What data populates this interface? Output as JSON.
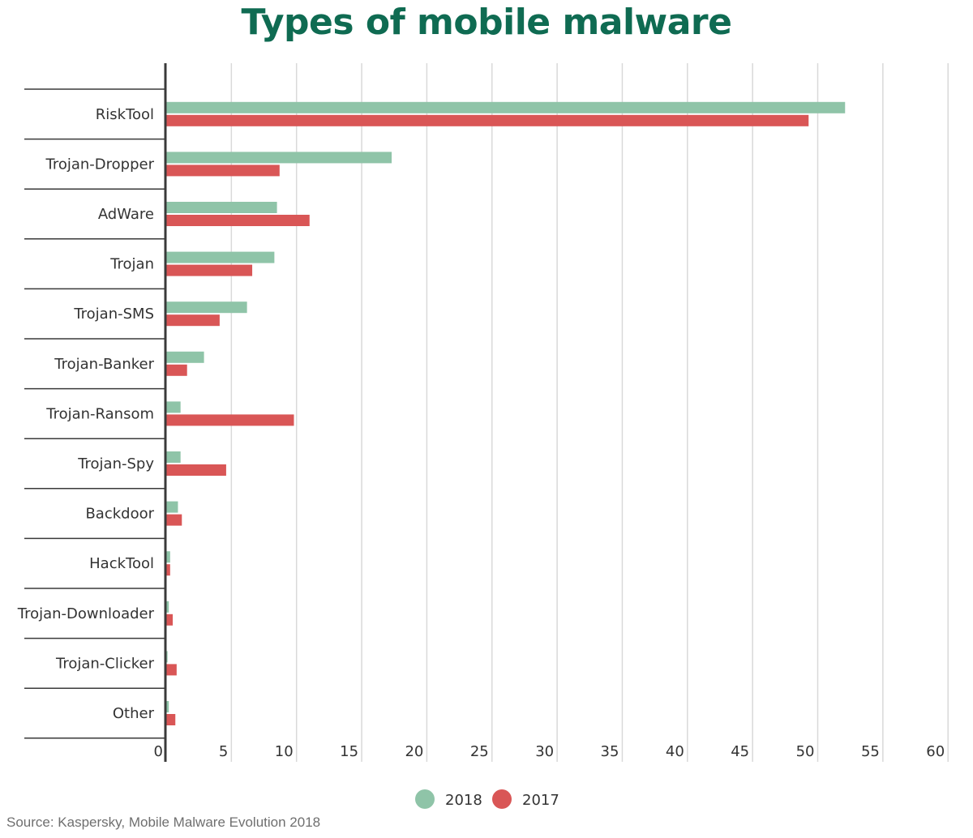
{
  "title": "Types of mobile malware",
  "source": "Source: Kaspersky, Mobile Malware Evolution 2018",
  "colors": {
    "title": "#0f6b52",
    "series_2018": "#8fc4a8",
    "series_2017": "#d95656",
    "grid": "#d9d9d9",
    "axis": "#3a3a3a",
    "text": "#333333"
  },
  "chart_data": {
    "type": "bar",
    "orientation": "horizontal",
    "title": "Types of mobile malware",
    "categories": [
      "RiskTool",
      "Trojan-Dropper",
      "AdWare",
      "Trojan",
      "Trojan-SMS",
      "Trojan-Banker",
      "Trojan-Ransom",
      "Trojan-Spy",
      "Backdoor",
      "HackTool",
      "Trojan-Downloader",
      "Trojan-Clicker",
      "Other"
    ],
    "series": [
      {
        "name": "2018",
        "values": [
          52.1,
          17.3,
          8.5,
          8.3,
          6.2,
          2.9,
          1.1,
          1.1,
          0.9,
          0.3,
          0.2,
          0.1,
          0.2
        ]
      },
      {
        "name": "2017",
        "values": [
          49.3,
          8.7,
          11.0,
          6.6,
          4.1,
          1.6,
          9.8,
          4.6,
          1.2,
          0.3,
          0.5,
          0.8,
          0.7
        ]
      }
    ],
    "xlim": [
      0,
      60
    ],
    "xticks": [
      "0",
      "5",
      "10",
      "15",
      "20",
      "25",
      "30",
      "35",
      "40",
      "45",
      "50",
      "55",
      "60"
    ],
    "grid": "vertical",
    "legend": "bottom-center"
  }
}
